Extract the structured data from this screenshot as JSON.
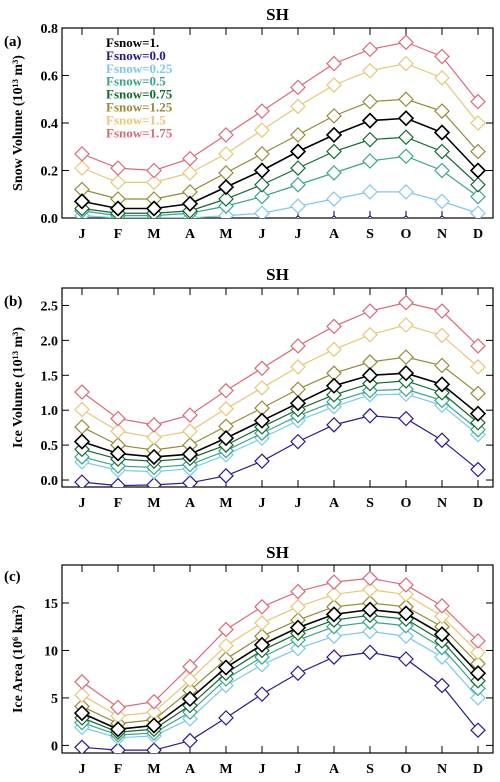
{
  "months": [
    "J",
    "F",
    "M",
    "A",
    "M",
    "J",
    "J",
    "A",
    "S",
    "O",
    "N",
    "D"
  ],
  "series_style": [
    {
      "name": "Fsnow=1.",
      "color": "#000000"
    },
    {
      "name": "Fsnow=0.0",
      "color": "#2a1a8c"
    },
    {
      "name": "Fsnow=0.25",
      "color": "#7ec8e8"
    },
    {
      "name": "Fsnow=0.5",
      "color": "#3aa58a"
    },
    {
      "name": "Fsnow=0.75",
      "color": "#0f6b2c"
    },
    {
      "name": "Fsnow=1.25",
      "color": "#958a36"
    },
    {
      "name": "Fsnow=1.5",
      "color": "#e6c875"
    },
    {
      "name": "Fsnow=1.75",
      "color": "#d86a78"
    }
  ],
  "chart_data": [
    {
      "type": "line",
      "panel_tag": "(a)",
      "title": "SH",
      "ylabel": "Snow Volume (10¹³ m³)",
      "ylim": [
        0.0,
        0.8
      ],
      "yticks": [
        0.0,
        0.2,
        0.4,
        0.6,
        0.8
      ],
      "ytick_labels": [
        "0.0",
        "0.2",
        "0.4",
        "0.6",
        "0.8"
      ],
      "categories": [
        "J",
        "F",
        "M",
        "A",
        "M",
        "J",
        "J",
        "A",
        "S",
        "O",
        "N",
        "D"
      ],
      "legend_position": "top-left",
      "series": [
        {
          "name": "Fsnow=1.",
          "values": [
            0.07,
            0.04,
            0.04,
            0.06,
            0.13,
            0.2,
            0.28,
            0.35,
            0.41,
            0.42,
            0.36,
            0.2
          ]
        },
        {
          "name": "Fsnow=0.0",
          "values": [
            -0.02,
            -0.02,
            -0.02,
            -0.02,
            -0.02,
            -0.02,
            -0.02,
            -0.02,
            -0.02,
            -0.02,
            -0.02,
            -0.02
          ]
        },
        {
          "name": "Fsnow=0.25",
          "values": [
            0.01,
            0.0,
            0.0,
            0.0,
            0.01,
            0.02,
            0.05,
            0.08,
            0.11,
            0.11,
            0.07,
            0.02
          ]
        },
        {
          "name": "Fsnow=0.5",
          "values": [
            0.03,
            0.01,
            0.01,
            0.02,
            0.05,
            0.09,
            0.14,
            0.19,
            0.24,
            0.26,
            0.2,
            0.09
          ]
        },
        {
          "name": "Fsnow=0.75",
          "values": [
            0.04,
            0.02,
            0.02,
            0.03,
            0.08,
            0.14,
            0.21,
            0.28,
            0.33,
            0.34,
            0.28,
            0.14
          ]
        },
        {
          "name": "Fsnow=1.25",
          "values": [
            0.12,
            0.08,
            0.08,
            0.11,
            0.19,
            0.27,
            0.35,
            0.43,
            0.49,
            0.5,
            0.45,
            0.28
          ]
        },
        {
          "name": "Fsnow=1.5",
          "values": [
            0.21,
            0.15,
            0.15,
            0.19,
            0.27,
            0.37,
            0.47,
            0.56,
            0.62,
            0.65,
            0.59,
            0.4
          ]
        },
        {
          "name": "Fsnow=1.75",
          "values": [
            0.27,
            0.21,
            0.2,
            0.25,
            0.35,
            0.45,
            0.55,
            0.65,
            0.71,
            0.74,
            0.68,
            0.49
          ]
        }
      ]
    },
    {
      "type": "line",
      "panel_tag": "(b)",
      "title": "SH",
      "ylabel": "Ice Volume (10¹³ m³)",
      "ylim": [
        -0.1,
        2.75
      ],
      "yticks": [
        0.0,
        0.5,
        1.0,
        1.5,
        2.0,
        2.5
      ],
      "ytick_labels": [
        "0.0",
        "0.5",
        "1.0",
        "1.5",
        "2.0",
        "2.5"
      ],
      "categories": [
        "J",
        "F",
        "M",
        "A",
        "M",
        "J",
        "J",
        "A",
        "S",
        "O",
        "N",
        "D"
      ],
      "series": [
        {
          "name": "Fsnow=1.",
          "values": [
            0.55,
            0.38,
            0.33,
            0.37,
            0.6,
            0.85,
            1.1,
            1.35,
            1.5,
            1.53,
            1.37,
            0.95
          ]
        },
        {
          "name": "Fsnow=0.0",
          "values": [
            -0.03,
            -0.08,
            -0.07,
            -0.04,
            0.06,
            0.27,
            0.55,
            0.79,
            0.92,
            0.88,
            0.57,
            0.15
          ]
        },
        {
          "name": "Fsnow=0.25",
          "values": [
            0.26,
            0.14,
            0.12,
            0.16,
            0.36,
            0.6,
            0.85,
            1.05,
            1.22,
            1.23,
            1.07,
            0.65
          ]
        },
        {
          "name": "Fsnow=0.5",
          "values": [
            0.33,
            0.2,
            0.18,
            0.22,
            0.42,
            0.67,
            0.92,
            1.12,
            1.28,
            1.3,
            1.14,
            0.72
          ]
        },
        {
          "name": "Fsnow=0.75",
          "values": [
            0.44,
            0.3,
            0.27,
            0.31,
            0.5,
            0.76,
            1.01,
            1.22,
            1.38,
            1.42,
            1.25,
            0.82
          ]
        },
        {
          "name": "Fsnow=1.25",
          "values": [
            0.76,
            0.5,
            0.43,
            0.5,
            0.77,
            1.03,
            1.3,
            1.53,
            1.69,
            1.76,
            1.64,
            1.24
          ]
        },
        {
          "name": "Fsnow=1.5",
          "values": [
            1.01,
            0.7,
            0.61,
            0.7,
            1.02,
            1.32,
            1.62,
            1.87,
            2.08,
            2.22,
            2.07,
            1.62
          ]
        },
        {
          "name": "Fsnow=1.75",
          "values": [
            1.26,
            0.88,
            0.79,
            0.93,
            1.28,
            1.6,
            1.92,
            2.2,
            2.42,
            2.54,
            2.42,
            1.92
          ]
        }
      ]
    },
    {
      "type": "line",
      "panel_tag": "(c)",
      "title": "SH",
      "ylabel": "Ice Area (10⁶ km²)",
      "ylim": [
        -0.8,
        19.0
      ],
      "yticks": [
        0,
        5,
        10,
        15
      ],
      "ytick_labels": [
        "0",
        "5",
        "10",
        "15"
      ],
      "categories": [
        "J",
        "F",
        "M",
        "A",
        "M",
        "J",
        "J",
        "A",
        "S",
        "O",
        "N",
        "D"
      ],
      "series": [
        {
          "name": "Fsnow=1.",
          "values": [
            3.4,
            1.7,
            2.1,
            4.9,
            8.2,
            10.6,
            12.4,
            13.8,
            14.3,
            13.9,
            11.7,
            7.6
          ]
        },
        {
          "name": "Fsnow=0.0",
          "values": [
            -0.2,
            -0.5,
            -0.5,
            0.5,
            2.9,
            5.4,
            7.6,
            9.3,
            9.8,
            9.1,
            6.3,
            1.6
          ]
        },
        {
          "name": "Fsnow=0.25",
          "values": [
            1.9,
            0.8,
            1.0,
            2.8,
            6.3,
            8.5,
            10.2,
            11.5,
            12.0,
            11.5,
            9.3,
            5.0
          ]
        },
        {
          "name": "Fsnow=0.5",
          "values": [
            2.4,
            1.1,
            1.3,
            3.5,
            7.0,
            9.3,
            11.1,
            12.5,
            13.0,
            12.6,
            10.3,
            6.0
          ]
        },
        {
          "name": "Fsnow=0.75",
          "values": [
            2.9,
            1.4,
            1.7,
            4.2,
            7.6,
            10.0,
            11.8,
            13.2,
            13.7,
            13.3,
            11.0,
            6.8
          ]
        },
        {
          "name": "Fsnow=1.25",
          "values": [
            4.1,
            2.3,
            2.7,
            5.8,
            9.1,
            11.5,
            13.2,
            14.6,
            15.0,
            14.6,
            12.5,
            8.6
          ]
        },
        {
          "name": "Fsnow=1.5",
          "values": [
            5.3,
            3.1,
            3.5,
            6.9,
            10.5,
            12.9,
            14.6,
            15.9,
            16.4,
            15.9,
            13.6,
            9.8
          ]
        },
        {
          "name": "Fsnow=1.75",
          "values": [
            6.7,
            4.0,
            4.6,
            8.3,
            12.2,
            14.6,
            16.2,
            17.2,
            17.6,
            16.9,
            14.7,
            11.0
          ]
        }
      ]
    }
  ]
}
